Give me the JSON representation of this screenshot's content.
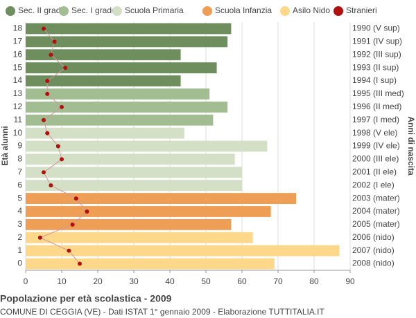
{
  "chart_data": {
    "type": "bar",
    "orientation": "horizontal",
    "title": "Popolazione per età scolastica - 2009",
    "subtitle": "COMUNE DI CEGGIA (VE) - Dati ISTAT 1° gennaio 2009 - Elaborazione TUTTITALIA.IT",
    "y_label": "Età alunni",
    "y2_label": "Anni di nascita",
    "categories": [
      "18",
      "17",
      "16",
      "15",
      "14",
      "13",
      "12",
      "11",
      "10",
      "9",
      "8",
      "7",
      "6",
      "5",
      "4",
      "3",
      "2",
      "1",
      "0"
    ],
    "year_labels": [
      "1990 (V sup)",
      "1991 (IV sup)",
      "1992 (III sup)",
      "1993 (II sup)",
      "1994 (I sup)",
      "1995 (III med)",
      "1996 (II med)",
      "1997 (I med)",
      "1998 (V ele)",
      "1999 (IV ele)",
      "2000 (III ele)",
      "2001 (II ele)",
      "2002 (I ele)",
      "2003 (mater)",
      "2004 (mater)",
      "2005 (mater)",
      "2006 (nido)",
      "2007 (nido)",
      "2008 (nido)"
    ],
    "series": [
      {
        "name": "Sec. II grado",
        "color": "#6e8f5d",
        "values": [
          57,
          56,
          43,
          53,
          43,
          null,
          null,
          null,
          null,
          null,
          null,
          null,
          null,
          null,
          null,
          null,
          null,
          null,
          null
        ]
      },
      {
        "name": "Sec. I grado",
        "color": "#a2bd92",
        "values": [
          null,
          null,
          null,
          null,
          null,
          51,
          56,
          52,
          null,
          null,
          null,
          null,
          null,
          null,
          null,
          null,
          null,
          null,
          null
        ]
      },
      {
        "name": "Scuola Primaria",
        "color": "#d4e0c5",
        "values": [
          null,
          null,
          null,
          null,
          null,
          null,
          null,
          null,
          44,
          67,
          58,
          60,
          60,
          null,
          null,
          null,
          null,
          null,
          null
        ]
      },
      {
        "name": "Scuola Infanzia",
        "color": "#ee9e55",
        "values": [
          null,
          null,
          null,
          null,
          null,
          null,
          null,
          null,
          null,
          null,
          null,
          null,
          null,
          75,
          68,
          57,
          null,
          null,
          null
        ]
      },
      {
        "name": "Asilo Nido",
        "color": "#fdd88b",
        "values": [
          null,
          null,
          null,
          null,
          null,
          null,
          null,
          null,
          null,
          null,
          null,
          null,
          null,
          null,
          null,
          null,
          63,
          87,
          69
        ]
      },
      {
        "name": "Stranieri",
        "type": "line",
        "color": "#b20f0f",
        "values": [
          5,
          8,
          7,
          11,
          6,
          6,
          10,
          5,
          6,
          9,
          10,
          5,
          7,
          14,
          17,
          13,
          4,
          12,
          15
        ]
      }
    ],
    "xlim": [
      0,
      90
    ],
    "xticks": [
      0,
      10,
      20,
      30,
      40,
      50,
      60,
      70,
      80,
      90
    ],
    "grid": true
  }
}
